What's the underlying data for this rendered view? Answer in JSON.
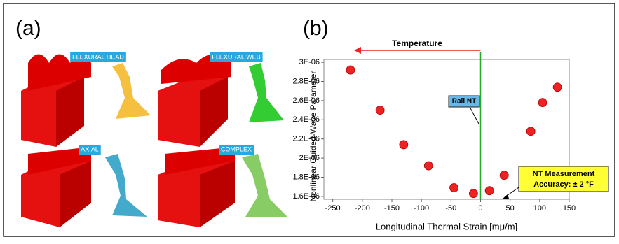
{
  "panel_a": {
    "label": "(a)",
    "modes": [
      "FLEXURAL HEAD",
      "FLEXURAL WEB",
      "AXIAL",
      "COMPLEX"
    ]
  },
  "chart_data": {
    "type": "scatter",
    "panel_label": "(b)",
    "x_label": "Longitudinal Thermal Strain [mμ/m]",
    "y_label": "Nonlinear Guided-Wave Parameter",
    "x": [
      -220,
      -170,
      -130,
      -88,
      -45,
      -12,
      15,
      40,
      85,
      105,
      130
    ],
    "series": [
      {
        "color": "#ee2222",
        "values": [
          2.92e-06,
          2.5e-06,
          2.14e-06,
          1.92e-06,
          1.69e-06,
          1.63e-06,
          1.66e-06,
          1.82e-06,
          2.28e-06,
          2.58e-06,
          2.74e-06
        ]
      }
    ],
    "xlim": [
      -265,
      150
    ],
    "xticks": [
      -250,
      -200,
      -150,
      -100,
      -50,
      0,
      50,
      100,
      150
    ],
    "ylim": [
      1.57e-06,
      3.03e-06
    ],
    "yticks": [
      {
        "value": 1.6e-06,
        "label": "1.6E-06"
      },
      {
        "value": 1.8e-06,
        "label": "1.8E-06"
      },
      {
        "value": 2e-06,
        "label": "2E-06"
      },
      {
        "value": 2.2e-06,
        "label": "2.2E-06"
      },
      {
        "value": 2.4e-06,
        "label": "2.4E-06"
      },
      {
        "value": 2.6e-06,
        "label": "2.6E-06"
      },
      {
        "value": 2.8e-06,
        "label": "2.8E-06"
      },
      {
        "value": 3e-06,
        "label": "3E-06"
      }
    ],
    "temperature_label": "Temperature",
    "rail_nt": {
      "label": "Rail NT",
      "x": 0
    },
    "accuracy_box": [
      "NT Measurement",
      "Accuracy: ± 2 °F"
    ]
  }
}
